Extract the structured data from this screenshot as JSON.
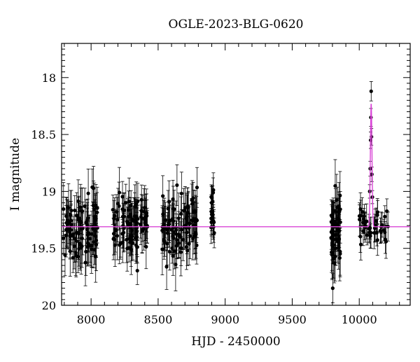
{
  "chart_data": {
    "type": "scatter",
    "title": "OGLE-2023-BLG-0620",
    "xlabel": "HJD - 2450000",
    "ylabel": "I magnitude",
    "xlim": [
      7780,
      10380
    ],
    "ylim": [
      20.0,
      17.7
    ],
    "y_inverted": true,
    "x_ticks": [
      8000,
      8500,
      9000,
      9500,
      10000
    ],
    "y_ticks": [
      18,
      18.5,
      19,
      19.5,
      20
    ],
    "y_tick_labels": [
      "18",
      "18.5",
      "19",
      "19.5",
      "20"
    ],
    "grid": false,
    "colors": {
      "points": "#000000",
      "model": "#d946d6",
      "frame": "#000000"
    },
    "series": [
      {
        "kind": "points_with_errorbars",
        "clusters": [
          {
            "x_range": [
              7790,
              8050
            ],
            "mean_mag": 19.32,
            "scatter": 0.14,
            "err": 0.18,
            "count": 95
          },
          {
            "x_range": [
              8160,
              8420
            ],
            "mean_mag": 19.3,
            "scatter": 0.13,
            "err": 0.17,
            "count": 95
          },
          {
            "x_range": [
              8530,
              8790
            ],
            "mean_mag": 19.3,
            "scatter": 0.14,
            "err": 0.18,
            "count": 95
          },
          {
            "x_range": [
              8895,
              8920
            ],
            "mean_mag": 19.25,
            "scatter": 0.15,
            "err": 0.12,
            "count": 18
          },
          {
            "x_range": [
              9790,
              9860
            ],
            "mean_mag": 19.35,
            "scatter": 0.16,
            "err": 0.18,
            "count": 55
          },
          {
            "x_range": [
              10000,
              10230
            ],
            "mean_mag": 19.3,
            "scatter": 0.1,
            "err": 0.12,
            "count": 40
          }
        ],
        "peak_points": [
          {
            "x": 10078,
            "mag": 19.0
          },
          {
            "x": 10082,
            "mag": 18.8
          },
          {
            "x": 10085,
            "mag": 18.55
          },
          {
            "x": 10087,
            "mag": 18.35
          },
          {
            "x": 10089,
            "mag": 18.12
          },
          {
            "x": 10091,
            "mag": 18.52
          },
          {
            "x": 10094,
            "mag": 18.85
          },
          {
            "x": 10098,
            "mag": 19.05
          }
        ]
      },
      {
        "kind": "model_curve",
        "baseline_mag": 19.31,
        "peak_x": 10089,
        "peak_mag": 18.22,
        "width_days": 6
      }
    ]
  }
}
